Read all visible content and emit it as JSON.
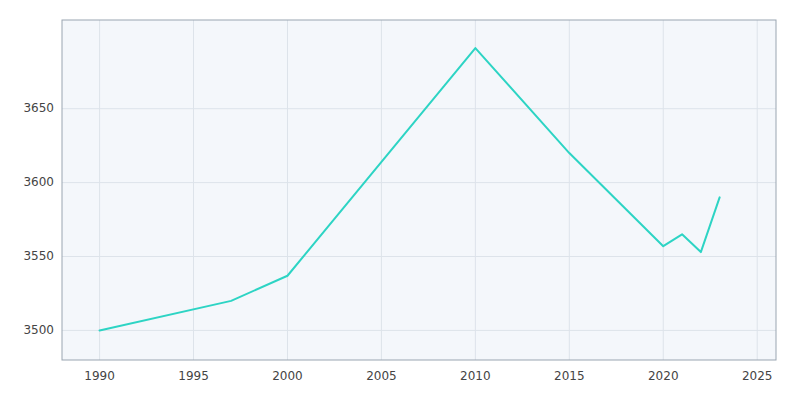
{
  "chart_data": {
    "type": "line",
    "x": [
      1990,
      1997,
      2000,
      2010,
      2015,
      2020,
      2021,
      2022,
      2023
    ],
    "values": [
      3500,
      3520,
      3537,
      3691,
      3620,
      3557,
      3565,
      3553,
      3590
    ],
    "color": "#2dd4c4",
    "xlim": [
      1988,
      2026
    ],
    "ylim": [
      3480,
      3710
    ],
    "xticks": [
      1990,
      1995,
      2000,
      2005,
      2010,
      2015,
      2020,
      2025
    ],
    "yticks": [
      3500,
      3550,
      3600,
      3650
    ],
    "grid": true
  }
}
